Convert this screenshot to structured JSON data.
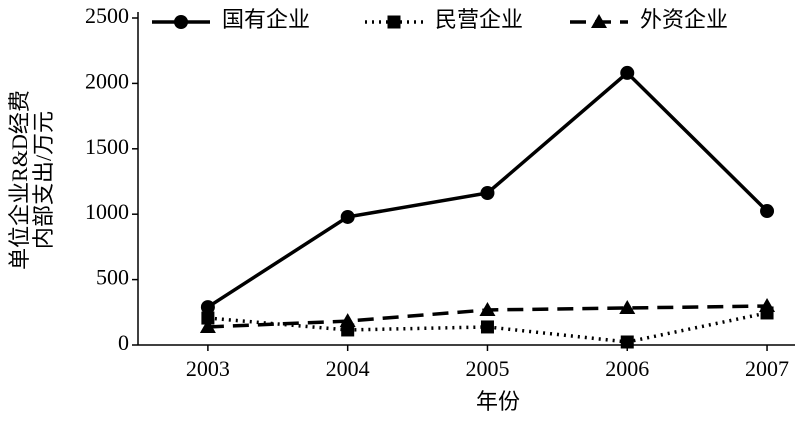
{
  "chart_data": {
    "type": "line",
    "xlabel": "年份",
    "ylabel": [
      "单位企业R&D经费",
      "内部支出/万元"
    ],
    "x": [
      2003,
      2004,
      2005,
      2006,
      2007
    ],
    "series": [
      {
        "name": "国有企业",
        "color": "#000000",
        "dash": "solid",
        "marker": "circle",
        "values": [
          290,
          979,
          1162,
          2080,
          1024
        ]
      },
      {
        "name": "民营企业",
        "color": "#000000",
        "dash": "dotted",
        "marker": "square",
        "values": [
          206,
          115,
          138,
          23,
          245
        ]
      },
      {
        "name": "外资企业",
        "color": "#000000",
        "dash": "dashed",
        "marker": "triangle",
        "values": [
          138,
          183,
          268,
          283,
          298
        ]
      }
    ],
    "xlim": [
      2002.5,
      2007.2
    ],
    "xticks": [
      2003,
      2004,
      2005,
      2006,
      2007
    ],
    "ylim": [
      0,
      2500
    ],
    "yticks": [
      0,
      500,
      1000,
      1500,
      2000,
      2500
    ],
    "grid": false,
    "legend": "top"
  }
}
